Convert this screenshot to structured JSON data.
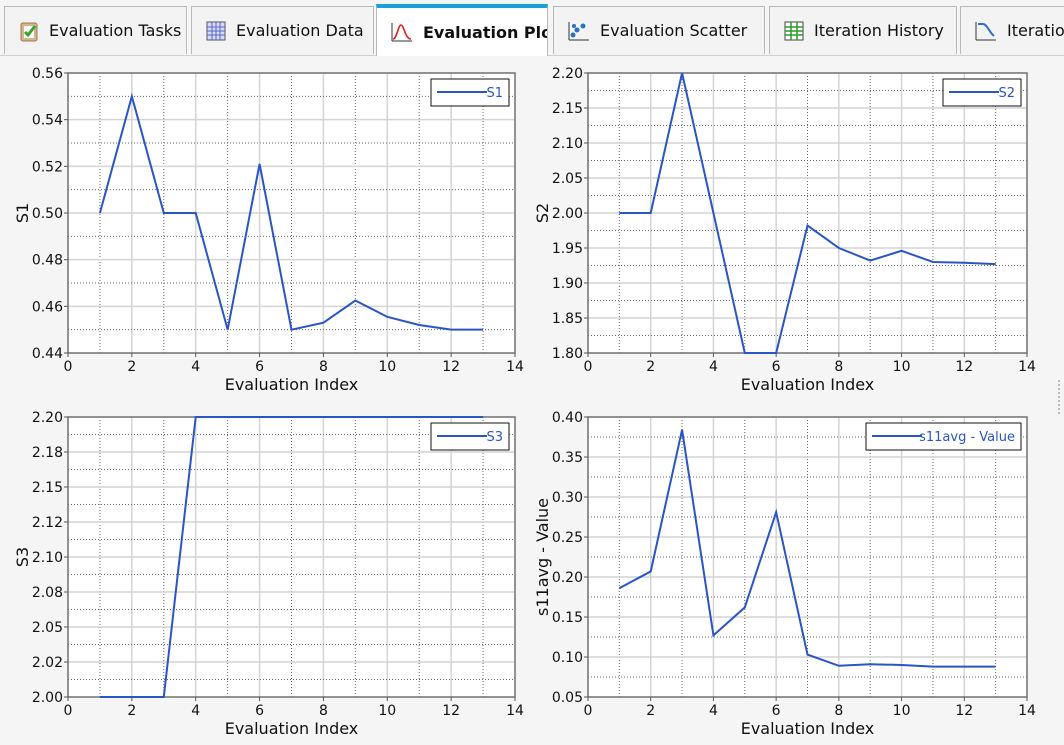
{
  "tabs": [
    {
      "label": "Evaluation Tasks",
      "icon": "clipboard-check-icon",
      "active": false
    },
    {
      "label": "Evaluation Data",
      "icon": "table-grid-icon",
      "active": false
    },
    {
      "label": "Evaluation Plot",
      "icon": "line-plot-icon",
      "active": true
    },
    {
      "label": "Evaluation Scatter",
      "icon": "scatter-icon",
      "active": false
    },
    {
      "label": "Iteration History",
      "icon": "green-table-icon",
      "active": false
    },
    {
      "label": "Iteration",
      "icon": "curve-plot-icon",
      "active": false
    }
  ],
  "colors": {
    "series": "#2a55c8",
    "accent": "#1aa0dd"
  },
  "chart_data": [
    {
      "type": "line",
      "xlabel": "Evaluation Index",
      "ylabel": "S1",
      "xlim": [
        0,
        14
      ],
      "ylim": [
        0.44,
        0.56
      ],
      "xticks": [
        "0",
        "2",
        "4",
        "6",
        "8",
        "10",
        "12",
        "14"
      ],
      "yticks": [
        "0.44",
        "0.46",
        "0.48",
        "0.50",
        "0.52",
        "0.54",
        "0.56"
      ],
      "grid": true,
      "legend": "top-right",
      "series": [
        {
          "name": "S1",
          "x": [
            1,
            2,
            3,
            4,
            5,
            6,
            7,
            8,
            9,
            10,
            11,
            12,
            13
          ],
          "y": [
            0.5,
            0.55,
            0.5,
            0.5,
            0.45,
            0.521,
            0.45,
            0.453,
            0.4625,
            0.4555,
            0.452,
            0.45,
            0.45
          ]
        }
      ]
    },
    {
      "type": "line",
      "xlabel": "Evaluation Index",
      "ylabel": "S2",
      "xlim": [
        0,
        14
      ],
      "ylim": [
        1.8,
        2.2
      ],
      "xticks": [
        "0",
        "2",
        "4",
        "6",
        "8",
        "10",
        "12",
        "14"
      ],
      "yticks": [
        "1.80",
        "1.85",
        "1.90",
        "1.95",
        "2.00",
        "2.05",
        "2.10",
        "2.15",
        "2.20"
      ],
      "grid": true,
      "legend": "top-right",
      "series": [
        {
          "name": "S2",
          "x": [
            1,
            2,
            3,
            4,
            5,
            6,
            7,
            8,
            9,
            10,
            11,
            12,
            13
          ],
          "y": [
            2.0,
            2.0,
            2.2,
            2.0,
            1.8,
            1.8,
            1.982,
            1.95,
            1.932,
            1.946,
            1.93,
            1.929,
            1.927
          ]
        }
      ]
    },
    {
      "type": "line",
      "xlabel": "Evaluation Index",
      "ylabel": "S3",
      "xlim": [
        0,
        14
      ],
      "ylim": [
        2.0,
        2.2
      ],
      "xticks": [
        "0",
        "2",
        "4",
        "6",
        "8",
        "10",
        "12",
        "14"
      ],
      "yticks": [
        "2.00",
        "2.02",
        "2.05",
        "2.08",
        "2.10",
        "2.12",
        "2.15",
        "2.18",
        "2.20"
      ],
      "grid": true,
      "legend": "top-right",
      "series": [
        {
          "name": "S3",
          "x": [
            1,
            2,
            3,
            4,
            5,
            6,
            7,
            8,
            9,
            10,
            11,
            12,
            13
          ],
          "y": [
            2.0,
            2.0,
            2.0,
            2.2,
            2.2,
            2.2,
            2.2,
            2.2,
            2.2,
            2.2,
            2.2,
            2.2,
            2.2
          ]
        }
      ]
    },
    {
      "type": "line",
      "xlabel": "Evaluation Index",
      "ylabel": "s11avg - Value",
      "xlim": [
        0,
        14
      ],
      "ylim": [
        0.05,
        0.4
      ],
      "xticks": [
        "0",
        "2",
        "4",
        "6",
        "8",
        "10",
        "12",
        "14"
      ],
      "yticks": [
        "0.05",
        "0.10",
        "0.15",
        "0.20",
        "0.25",
        "0.30",
        "0.35",
        "0.40"
      ],
      "grid": true,
      "legend": "top-right",
      "series": [
        {
          "name": "s11avg - Value",
          "x": [
            1,
            2,
            3,
            4,
            5,
            6,
            7,
            8,
            9,
            10,
            11,
            12,
            13
          ],
          "y": [
            0.186,
            0.207,
            0.384,
            0.127,
            0.162,
            0.281,
            0.103,
            0.089,
            0.091,
            0.09,
            0.088,
            0.088,
            0.088
          ]
        }
      ]
    }
  ]
}
